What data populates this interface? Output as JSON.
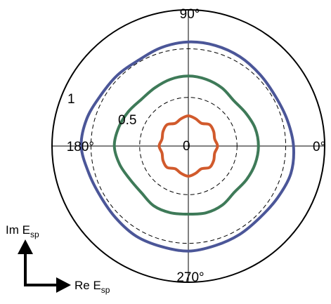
{
  "chart_data": {
    "type": "polar",
    "angle_labels": [
      {
        "deg": 0,
        "text": "0°"
      },
      {
        "deg": 90,
        "text": "90°"
      },
      {
        "deg": 180,
        "text": "180°"
      },
      {
        "deg": 270,
        "text": "270°"
      }
    ],
    "radial_labels": [
      {
        "r": 1,
        "text": "1"
      },
      {
        "r": 0.5,
        "text": "0.5"
      },
      {
        "r": 0,
        "text": "0"
      }
    ],
    "rlim": [
      0,
      1.4
    ],
    "grid": {
      "radii": [
        0.5,
        1,
        1.4
      ],
      "spokes_deg": [
        0,
        90,
        180,
        270
      ]
    },
    "series": [
      {
        "color": "#4B5698",
        "angles_deg": [
          0,
          15,
          30,
          45,
          60,
          75,
          90,
          105,
          120,
          135,
          150,
          165,
          180,
          195,
          210,
          225,
          240,
          255,
          270,
          285,
          300,
          315,
          330,
          345
        ],
        "r": [
          1.08,
          1.05,
          1.03,
          1.04,
          1.06,
          1.07,
          1.07,
          1.05,
          1.02,
          1.03,
          1.04,
          1.08,
          1.1,
          1.06,
          1.04,
          1.05,
          1.07,
          1.07,
          1.08,
          1.06,
          1.05,
          1.04,
          1.06,
          1.09
        ]
      },
      {
        "color": "#3E7A58",
        "angles_deg": [
          0,
          15,
          30,
          45,
          60,
          75,
          90,
          105,
          120,
          135,
          150,
          165,
          180,
          195,
          210,
          225,
          240,
          255,
          270,
          285,
          300,
          315,
          330,
          345
        ],
        "r": [
          0.72,
          0.71,
          0.68,
          0.66,
          0.69,
          0.71,
          0.72,
          0.71,
          0.69,
          0.68,
          0.71,
          0.74,
          0.76,
          0.73,
          0.69,
          0.68,
          0.71,
          0.71,
          0.7,
          0.71,
          0.7,
          0.67,
          0.69,
          0.71
        ]
      },
      {
        "color": "#D15A2C",
        "angles_deg": [
          0,
          15,
          30,
          45,
          60,
          75,
          90,
          105,
          120,
          135,
          150,
          165,
          180,
          195,
          210,
          225,
          240,
          255,
          270,
          285,
          300,
          315,
          330,
          345
        ],
        "r": [
          0.3,
          0.28,
          0.3,
          0.31,
          0.27,
          0.29,
          0.31,
          0.29,
          0.27,
          0.31,
          0.3,
          0.28,
          0.3,
          0.28,
          0.3,
          0.31,
          0.27,
          0.29,
          0.31,
          0.29,
          0.27,
          0.31,
          0.3,
          0.28
        ]
      }
    ]
  },
  "axes_arrow": {
    "vertical_label": "Im E",
    "vertical_sub": "sp",
    "horizontal_label": "Re E",
    "horizontal_sub": "sp"
  }
}
